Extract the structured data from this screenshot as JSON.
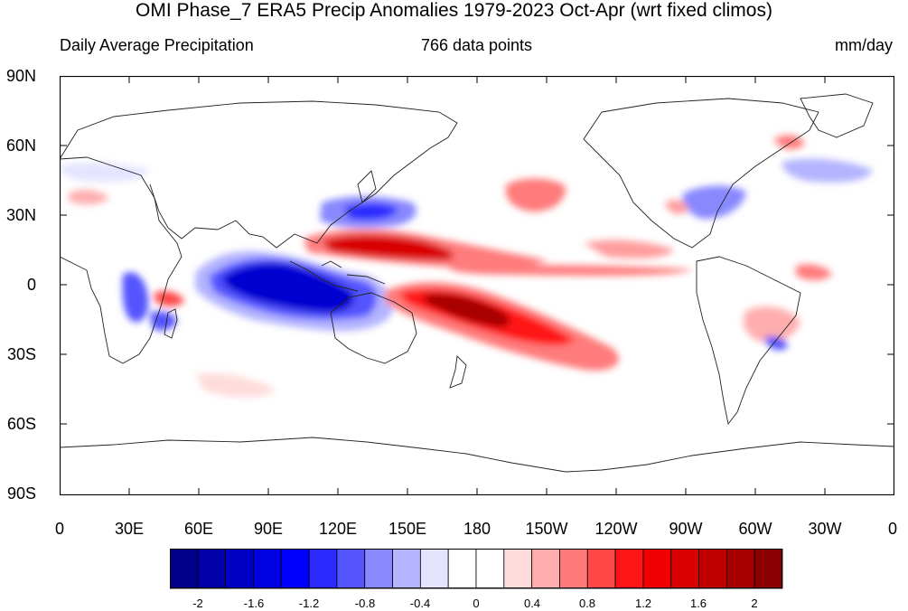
{
  "title": "OMI Phase_7 ERA5 Precip Anomalies 1979-2023 Oct-Apr (wrt fixed climos)",
  "subtitle_left": "Daily Average Precipitation",
  "subtitle_center": "766 data points",
  "subtitle_right": "mm/day",
  "lat_labels": [
    "90N",
    "60N",
    "30N",
    "0",
    "30S",
    "60S",
    "90S"
  ],
  "lon_labels": [
    "0",
    "30E",
    "60E",
    "90E",
    "120E",
    "150E",
    "180",
    "150W",
    "120W",
    "90W",
    "60W",
    "30W",
    "0"
  ],
  "colorbar": {
    "colors": [
      "#00008b",
      "#0000a8",
      "#0000c4",
      "#0000e0",
      "#0000ff",
      "#2a2aff",
      "#5555ff",
      "#8888ff",
      "#b4b4ff",
      "#e4e4ff",
      "#ffffff",
      "#ffffff",
      "#ffdcdc",
      "#ffadad",
      "#ff7b7b",
      "#ff4848",
      "#ff1515",
      "#f00000",
      "#d80000",
      "#c00000",
      "#a80000",
      "#8b0000"
    ],
    "labels": [
      "-2",
      "-1.6",
      "-1.2",
      "-0.8",
      "-0.4",
      "0",
      "0.4",
      "0.8",
      "1.2",
      "1.6",
      "2"
    ]
  }
}
